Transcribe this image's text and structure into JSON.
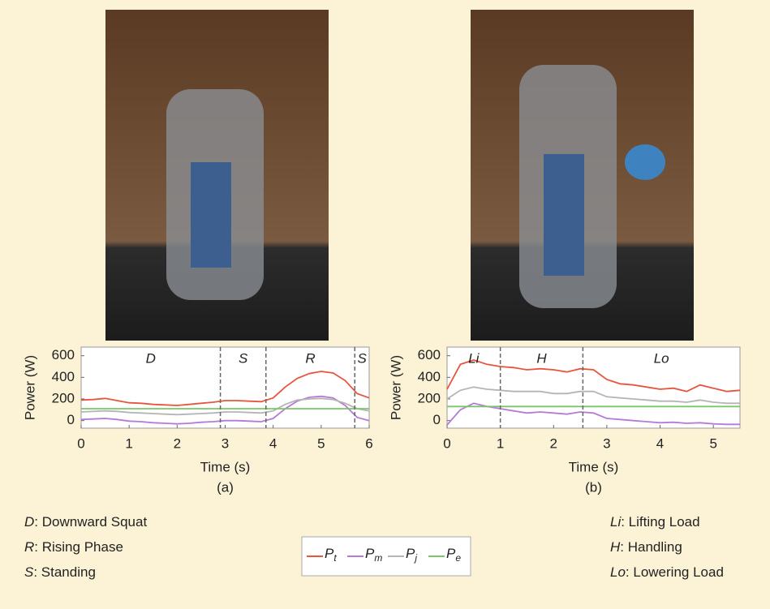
{
  "chart_data": [
    {
      "type": "line",
      "xlabel": "Time (s)",
      "ylabel": "Power (W)",
      "caption": "(a)",
      "xlim": [
        0,
        6
      ],
      "xticks": [
        0,
        1,
        2,
        3,
        4,
        5,
        6
      ],
      "ylim": [
        -70,
        680
      ],
      "yticks": [
        0,
        200,
        400,
        600
      ],
      "x": [
        0,
        0.25,
        0.5,
        0.75,
        1,
        1.25,
        1.5,
        1.75,
        2,
        2.25,
        2.5,
        2.75,
        3,
        3.25,
        3.5,
        3.75,
        4,
        4.25,
        4.5,
        4.75,
        5,
        5.25,
        5.5,
        5.75,
        6
      ],
      "series": [
        {
          "name": "Pt",
          "color": "#e8553f",
          "values": [
            190,
            195,
            205,
            185,
            165,
            160,
            150,
            145,
            140,
            150,
            160,
            170,
            185,
            185,
            180,
            175,
            210,
            310,
            390,
            435,
            455,
            440,
            370,
            250,
            210
          ]
        },
        {
          "name": "Pm",
          "color": "#b67ad6",
          "values": [
            10,
            15,
            20,
            10,
            -5,
            -10,
            -20,
            -25,
            -30,
            -25,
            -15,
            -10,
            0,
            0,
            -5,
            -10,
            20,
            110,
            180,
            215,
            225,
            210,
            140,
            30,
            0
          ]
        },
        {
          "name": "Pj",
          "color": "#b5b5b5",
          "values": [
            80,
            85,
            90,
            85,
            75,
            70,
            65,
            60,
            55,
            60,
            65,
            70,
            80,
            80,
            75,
            70,
            90,
            150,
            190,
            200,
            205,
            195,
            160,
            110,
            90
          ]
        },
        {
          "name": "Pe",
          "color": "#7cc66a",
          "values": [
            110,
            110,
            110,
            110,
            110,
            110,
            110,
            110,
            110,
            110,
            110,
            110,
            110,
            110,
            110,
            110,
            110,
            110,
            110,
            110,
            110,
            110,
            110,
            110,
            110
          ]
        }
      ],
      "phase_boundaries": [
        2.9,
        3.85,
        5.7
      ],
      "phase_labels": [
        "D",
        "S",
        "R",
        "S"
      ]
    },
    {
      "type": "line",
      "xlabel": "Time (s)",
      "ylabel": "Power (W)",
      "caption": "(b)",
      "xlim": [
        0,
        5.5
      ],
      "xticks": [
        0,
        1,
        2,
        3,
        4,
        5
      ],
      "ylim": [
        -70,
        680
      ],
      "yticks": [
        0,
        200,
        400,
        600
      ],
      "x": [
        0,
        0.25,
        0.5,
        0.75,
        1,
        1.25,
        1.5,
        1.75,
        2,
        2.25,
        2.5,
        2.75,
        3,
        3.25,
        3.5,
        3.75,
        4,
        4.25,
        4.5,
        4.75,
        5,
        5.25,
        5.5
      ],
      "series": [
        {
          "name": "Pt",
          "color": "#e8553f",
          "values": [
            290,
            520,
            560,
            520,
            500,
            490,
            470,
            480,
            470,
            450,
            480,
            470,
            380,
            340,
            330,
            310,
            290,
            300,
            270,
            330,
            300,
            270,
            280
          ]
        },
        {
          "name": "Pm",
          "color": "#b67ad6",
          "values": [
            -40,
            100,
            160,
            130,
            110,
            90,
            70,
            80,
            70,
            60,
            80,
            70,
            20,
            10,
            0,
            -10,
            -20,
            -15,
            -25,
            -20,
            -30,
            -35,
            -35
          ]
        },
        {
          "name": "Pj",
          "color": "#b5b5b5",
          "values": [
            200,
            280,
            310,
            290,
            280,
            270,
            270,
            270,
            250,
            250,
            270,
            270,
            220,
            210,
            200,
            190,
            180,
            180,
            170,
            190,
            170,
            160,
            160
          ]
        },
        {
          "name": "Pe",
          "color": "#7cc66a",
          "values": [
            130,
            130,
            130,
            130,
            130,
            130,
            130,
            130,
            130,
            130,
            130,
            130,
            130,
            130,
            130,
            130,
            130,
            130,
            130,
            130,
            130,
            130,
            130
          ]
        }
      ],
      "phase_boundaries": [
        1.0,
        2.55
      ],
      "phase_labels": [
        "Li",
        "H",
        "Lo"
      ]
    }
  ],
  "definitions_left": [
    {
      "term": "D",
      "text": ": Downward Squat"
    },
    {
      "term": "R",
      "text": ": Rising Phase"
    },
    {
      "term": "S",
      "text": ": Standing"
    }
  ],
  "definitions_right": [
    {
      "term": "Li",
      "text": ": Lifting Load"
    },
    {
      "term": "H",
      "text": ": Handling"
    },
    {
      "term": "Lo",
      "text": ": Lowering Load"
    }
  ]
}
